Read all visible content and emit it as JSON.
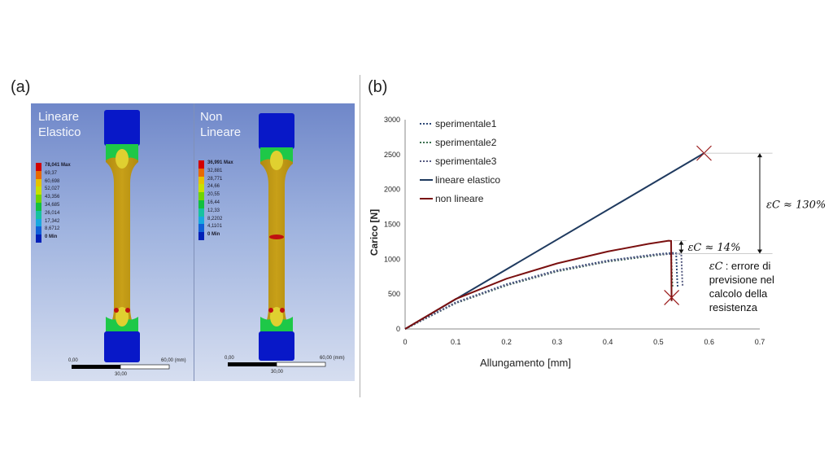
{
  "panels": {
    "a_label": "(a)",
    "b_label": "(b)"
  },
  "simulation": {
    "linear": {
      "title": "Lineare\nElastico",
      "legend": [
        "78,041 Max",
        "69,37",
        "60,698",
        "52,027",
        "43,356",
        "34,685",
        "26,014",
        "17,342",
        "8,6712",
        "0 Min"
      ],
      "scale": {
        "left": "0,00",
        "right": "60,00 (mm)",
        "mid": "30,00"
      }
    },
    "nonlinear": {
      "title": "Non\nLineare",
      "legend": [
        "36,991 Max",
        "32,881",
        "28,771",
        "24,66",
        "20,55",
        "16,44",
        "12,33",
        "8,2202",
        "4,1101",
        "0 Min"
      ],
      "scale": {
        "left": "0,00",
        "right": "60,00 (mm)",
        "mid": "30,00"
      }
    },
    "legend_colors": [
      "#d20000",
      "#e86a00",
      "#e6c200",
      "#c8e000",
      "#6fd400",
      "#12c040",
      "#16c2a0",
      "#18a8e0",
      "#1060d8",
      "#0020b8"
    ]
  },
  "chart_data": {
    "type": "line",
    "xlabel": "Allungamento [mm]",
    "ylabel": "Carico [N]",
    "xlim": [
      0,
      0.7
    ],
    "ylim": [
      0,
      3000
    ],
    "xticks": [
      "0",
      "0.1",
      "0.2",
      "0.3",
      "0.4",
      "0.5",
      "0.6",
      "0.7"
    ],
    "yticks": [
      "0",
      "500",
      "1000",
      "1500",
      "2000",
      "2500",
      "3000"
    ],
    "legend_position": "top-left",
    "series": [
      {
        "name": "sperimentale1",
        "color": "#2f4a78",
        "dash": "2,2",
        "points": [
          [
            0,
            0
          ],
          [
            0.1,
            380
          ],
          [
            0.2,
            640
          ],
          [
            0.3,
            840
          ],
          [
            0.4,
            980
          ],
          [
            0.5,
            1075
          ],
          [
            0.53,
            1090
          ],
          [
            0.535,
            1085
          ],
          [
            0.537,
            700
          ],
          [
            0.538,
            600
          ]
        ]
      },
      {
        "name": "sperimentale2",
        "color": "#3c7050",
        "dash": "2,2",
        "points": [
          [
            0,
            0
          ],
          [
            0.1,
            370
          ],
          [
            0.2,
            625
          ],
          [
            0.3,
            825
          ],
          [
            0.4,
            965
          ],
          [
            0.5,
            1060
          ],
          [
            0.52,
            1075
          ],
          [
            0.525,
            1070
          ],
          [
            0.527,
            700
          ],
          [
            0.528,
            600
          ]
        ]
      },
      {
        "name": "sperimentale3",
        "color": "#555a80",
        "dash": "2,2",
        "points": [
          [
            0,
            0
          ],
          [
            0.1,
            375
          ],
          [
            0.2,
            632
          ],
          [
            0.3,
            832
          ],
          [
            0.4,
            972
          ],
          [
            0.5,
            1068
          ],
          [
            0.54,
            1080
          ],
          [
            0.545,
            1075
          ],
          [
            0.547,
            700
          ],
          [
            0.548,
            600
          ]
        ]
      },
      {
        "name": "lineare elastico",
        "color": "#1f3a5f",
        "dash": "",
        "points": [
          [
            0,
            0
          ],
          [
            0.59,
            2520
          ]
        ]
      },
      {
        "name": "non lineare",
        "color": "#7a1010",
        "dash": "",
        "points": [
          [
            0,
            0
          ],
          [
            0.1,
            430
          ],
          [
            0.2,
            720
          ],
          [
            0.3,
            940
          ],
          [
            0.4,
            1110
          ],
          [
            0.48,
            1220
          ],
          [
            0.52,
            1265
          ],
          [
            0.525,
            1262
          ],
          [
            0.526,
            400
          ]
        ]
      }
    ],
    "markers": [
      [
        0.59,
        2520
      ],
      [
        0.526,
        450
      ]
    ],
    "annotations": {
      "big": {
        "text": "εC ≈ 130%",
        "x": 0.59,
        "y_low": 1080,
        "y_high": 2520
      },
      "small": {
        "text": "εC ≈ 14%",
        "x": 0.55,
        "y_low": 1080,
        "y_high": 1265
      },
      "note_label": "εC",
      "note": ": errore di\nprevisione nel\ncalcolo della\nresistenza"
    }
  }
}
